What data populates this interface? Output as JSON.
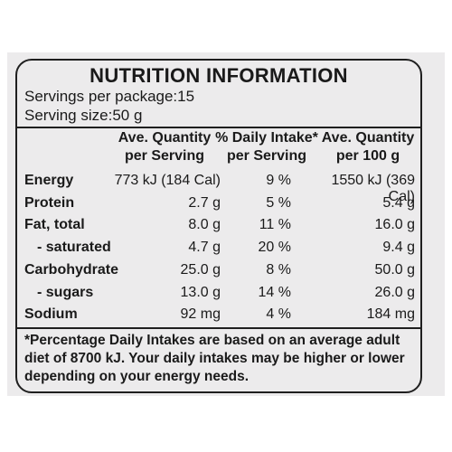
{
  "title": "NUTRITION INFORMATION",
  "servings": "Servings per package:15",
  "serving_size": "Serving size:50 g",
  "columns": {
    "qty_serving": [
      "Ave. Quantity",
      "per Serving"
    ],
    "daily_intake": [
      "% Daily Intake*",
      "per Serving"
    ],
    "qty_100g": [
      "Ave. Quantity",
      "per 100 g"
    ]
  },
  "rows": [
    {
      "name": "Energy",
      "per_serving": "773 kJ (184 Cal)",
      "daily": "9 %",
      "per_100g": "1550 kJ (369 Cal)"
    },
    {
      "name": "Protein",
      "per_serving": "2.7 g",
      "daily": "5 %",
      "per_100g": "5.4 g"
    },
    {
      "name": "Fat, total",
      "per_serving": "8.0 g",
      "daily": "11 %",
      "per_100g": "16.0 g"
    },
    {
      "name": "- saturated",
      "per_serving": "4.7 g",
      "daily": "20 %",
      "per_100g": "9.4 g"
    },
    {
      "name": "Carbohydrate",
      "per_serving": "25.0 g",
      "daily": "8 %",
      "per_100g": "50.0 g"
    },
    {
      "name": "- sugars",
      "per_serving": "13.0 g",
      "daily": "14 %",
      "per_100g": "26.0 g"
    },
    {
      "name": "Sodium",
      "per_serving": "92 mg",
      "daily": "4 %",
      "per_100g": "184 mg"
    }
  ],
  "footnote": "*Percentage Daily Intakes are based on an average adult diet of 8700 kJ. Your daily intakes may be higher or lower depending on your energy needs."
}
